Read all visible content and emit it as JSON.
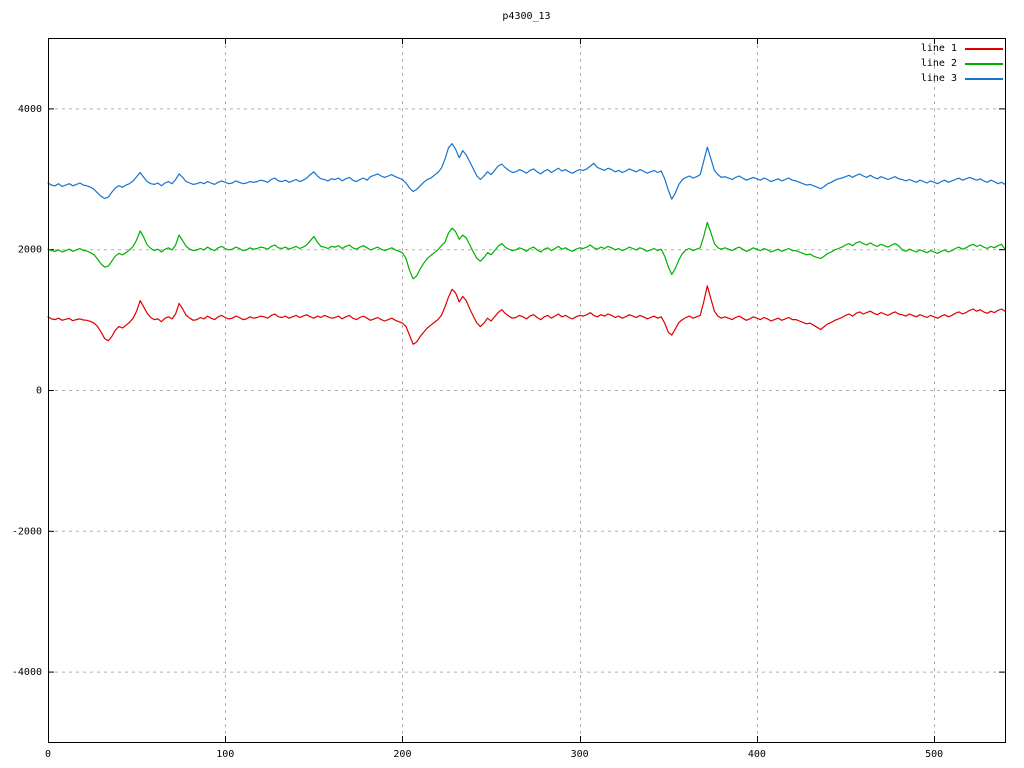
{
  "chart_data": {
    "type": "line",
    "title": "p4300_13",
    "xlabel": "",
    "ylabel": "",
    "xlim": [
      0,
      540
    ],
    "ylim": [
      -5000,
      5000
    ],
    "x_ticks": [
      0,
      100,
      200,
      300,
      400,
      500
    ],
    "y_ticks": [
      -4000,
      -2000,
      0,
      2000,
      4000
    ],
    "grid": "dashed",
    "legend_position": "top-right-inside",
    "colors": {
      "background": "#ffffff",
      "grid": "#b0b0b0",
      "axis": "#000000"
    },
    "x_start": 0,
    "x_step": 2,
    "series": [
      {
        "name": "line 1",
        "color": "#e00000",
        "values": [
          1040,
          1010,
          1000,
          1020,
          990,
          1005,
          1015,
          985,
          1000,
          1010,
          995,
          990,
          975,
          950,
          900,
          820,
          730,
          700,
          760,
          850,
          900,
          880,
          920,
          960,
          1020,
          1120,
          1270,
          1180,
          1090,
          1030,
          1000,
          1010,
          970,
          1020,
          1040,
          1010,
          1080,
          1230,
          1150,
          1060,
          1020,
          990,
          1000,
          1030,
          1010,
          1050,
          1020,
          1000,
          1040,
          1060,
          1030,
          1010,
          1020,
          1050,
          1030,
          1000,
          1010,
          1040,
          1020,
          1030,
          1050,
          1040,
          1020,
          1060,
          1080,
          1040,
          1030,
          1050,
          1020,
          1040,
          1060,
          1030,
          1050,
          1070,
          1040,
          1020,
          1050,
          1030,
          1060,
          1040,
          1020,
          1030,
          1050,
          1010,
          1040,
          1060,
          1020,
          1000,
          1030,
          1050,
          1020,
          990,
          1010,
          1030,
          1000,
          980,
          1000,
          1020,
          990,
          970,
          950,
          900,
          780,
          650,
          680,
          760,
          820,
          880,
          920,
          960,
          1000,
          1060,
          1180,
          1320,
          1430,
          1380,
          1250,
          1330,
          1270,
          1150,
          1050,
          950,
          900,
          950,
          1020,
          980,
          1040,
          1100,
          1140,
          1090,
          1050,
          1020,
          1030,
          1060,
          1040,
          1010,
          1050,
          1070,
          1030,
          1000,
          1040,
          1060,
          1020,
          1050,
          1080,
          1040,
          1060,
          1030,
          1010,
          1040,
          1060,
          1050,
          1070,
          1100,
          1060,
          1040,
          1070,
          1050,
          1080,
          1060,
          1030,
          1050,
          1020,
          1040,
          1070,
          1050,
          1030,
          1060,
          1040,
          1010,
          1030,
          1050,
          1020,
          1040,
          950,
          820,
          780,
          870,
          960,
          1000,
          1030,
          1050,
          1020,
          1040,
          1060,
          1250,
          1480,
          1300,
          1120,
          1050,
          1020,
          1040,
          1020,
          1000,
          1030,
          1050,
          1020,
          990,
          1010,
          1040,
          1020,
          1000,
          1030,
          1010,
          980,
          1000,
          1020,
          990,
          1010,
          1030,
          1000,
          1000,
          980,
          960,
          940,
          950,
          920,
          890,
          860,
          900,
          940,
          960,
          990,
          1010,
          1030,
          1060,
          1080,
          1050,
          1090,
          1110,
          1080,
          1100,
          1120,
          1090,
          1070,
          1100,
          1080,
          1060,
          1090,
          1110,
          1080,
          1070,
          1050,
          1080,
          1060,
          1040,
          1070,
          1050,
          1030,
          1060,
          1040,
          1020,
          1050,
          1070,
          1040,
          1060,
          1090,
          1110,
          1080,
          1100,
          1130,
          1150,
          1120,
          1140,
          1110,
          1090,
          1120,
          1100,
          1130,
          1150,
          1120
        ]
      },
      {
        "name": "line 2",
        "color": "#00b000",
        "values": [
          2000,
          1980,
          1970,
          1990,
          1960,
          1980,
          2000,
          1970,
          1990,
          2010,
          1980,
          1975,
          1950,
          1920,
          1860,
          1790,
          1745,
          1760,
          1830,
          1900,
          1940,
          1920,
          1950,
          1990,
          2040,
          2130,
          2260,
          2170,
          2060,
          2010,
          1980,
          2000,
          1960,
          2000,
          2020,
          1990,
          2060,
          2200,
          2120,
          2040,
          2000,
          1980,
          1990,
          2010,
          1990,
          2030,
          2000,
          1980,
          2020,
          2040,
          2010,
          1990,
          2000,
          2030,
          2010,
          1980,
          1990,
          2020,
          2000,
          2010,
          2030,
          2020,
          2000,
          2040,
          2060,
          2020,
          2010,
          2030,
          2000,
          2020,
          2040,
          2010,
          2030,
          2060,
          2120,
          2180,
          2100,
          2040,
          2030,
          2010,
          2040,
          2030,
          2050,
          2010,
          2040,
          2060,
          2020,
          2000,
          2030,
          2050,
          2020,
          1990,
          2010,
          2030,
          2000,
          1980,
          2000,
          2020,
          1990,
          1970,
          1950,
          1870,
          1700,
          1580,
          1620,
          1720,
          1800,
          1870,
          1910,
          1950,
          1990,
          2050,
          2100,
          2230,
          2300,
          2250,
          2140,
          2200,
          2160,
          2060,
          1960,
          1870,
          1830,
          1880,
          1950,
          1920,
          1980,
          2040,
          2080,
          2030,
          2000,
          1980,
          1990,
          2020,
          2000,
          1970,
          2010,
          2030,
          1990,
          1960,
          2000,
          2020,
          1980,
          2010,
          2040,
          2000,
          2020,
          1990,
          1970,
          2000,
          2020,
          2010,
          2030,
          2060,
          2020,
          2000,
          2030,
          2010,
          2040,
          2020,
          1990,
          2010,
          1980,
          2000,
          2030,
          2010,
          1990,
          2020,
          2000,
          1970,
          1990,
          2010,
          1980,
          2000,
          1900,
          1750,
          1640,
          1730,
          1850,
          1940,
          1990,
          2010,
          1980,
          2000,
          2020,
          2180,
          2380,
          2240,
          2080,
          2020,
          2000,
          2020,
          2000,
          1980,
          2010,
          2030,
          2000,
          1970,
          1990,
          2020,
          2000,
          1980,
          2010,
          1990,
          1960,
          1980,
          2000,
          1970,
          1990,
          2010,
          1980,
          1980,
          1960,
          1940,
          1920,
          1930,
          1900,
          1880,
          1870,
          1900,
          1940,
          1960,
          1990,
          2010,
          2030,
          2060,
          2080,
          2050,
          2090,
          2110,
          2080,
          2060,
          2090,
          2060,
          2040,
          2070,
          2050,
          2030,
          2060,
          2080,
          2050,
          1990,
          1970,
          2000,
          1980,
          1960,
          1990,
          1970,
          1950,
          1980,
          1960,
          1940,
          1970,
          1990,
          1960,
          1980,
          2010,
          2030,
          2000,
          2020,
          2050,
          2070,
          2040,
          2060,
          2030,
          2010,
          2040,
          2020,
          2050,
          2070,
          2000
        ]
      },
      {
        "name": "line 3",
        "color": "#1874cd",
        "values": [
          2940,
          2910,
          2900,
          2930,
          2890,
          2910,
          2930,
          2900,
          2920,
          2940,
          2910,
          2900,
          2880,
          2850,
          2800,
          2750,
          2720,
          2740,
          2810,
          2870,
          2900,
          2880,
          2910,
          2930,
          2970,
          3030,
          3090,
          3020,
          2960,
          2930,
          2920,
          2940,
          2900,
          2940,
          2960,
          2930,
          2990,
          3070,
          3020,
          2960,
          2940,
          2920,
          2930,
          2950,
          2930,
          2960,
          2940,
          2920,
          2950,
          2970,
          2950,
          2930,
          2940,
          2970,
          2950,
          2930,
          2940,
          2960,
          2950,
          2960,
          2980,
          2970,
          2950,
          2990,
          3010,
          2970,
          2960,
          2980,
          2950,
          2970,
          2990,
          2960,
          2980,
          3010,
          3060,
          3100,
          3040,
          3000,
          2990,
          2970,
          3000,
          2990,
          3010,
          2970,
          3000,
          3020,
          2980,
          2960,
          2990,
          3010,
          2980,
          3030,
          3050,
          3070,
          3040,
          3020,
          3040,
          3060,
          3030,
          3010,
          2990,
          2940,
          2870,
          2820,
          2850,
          2900,
          2950,
          2990,
          3010,
          3050,
          3090,
          3150,
          3280,
          3440,
          3500,
          3420,
          3300,
          3400,
          3340,
          3240,
          3140,
          3040,
          2990,
          3040,
          3100,
          3060,
          3120,
          3180,
          3210,
          3160,
          3120,
          3090,
          3100,
          3130,
          3110,
          3080,
          3120,
          3140,
          3100,
          3070,
          3110,
          3130,
          3090,
          3120,
          3150,
          3110,
          3130,
          3100,
          3080,
          3110,
          3130,
          3120,
          3140,
          3180,
          3220,
          3160,
          3140,
          3120,
          3150,
          3130,
          3100,
          3120,
          3090,
          3110,
          3140,
          3120,
          3100,
          3130,
          3110,
          3080,
          3100,
          3120,
          3090,
          3110,
          3000,
          2840,
          2710,
          2800,
          2920,
          2990,
          3020,
          3040,
          3010,
          3030,
          3060,
          3250,
          3450,
          3290,
          3120,
          3060,
          3020,
          3030,
          3010,
          2990,
          3020,
          3040,
          3010,
          2980,
          3000,
          3020,
          3000,
          2980,
          3010,
          2990,
          2960,
          2980,
          3000,
          2970,
          2990,
          3010,
          2980,
          2970,
          2950,
          2930,
          2910,
          2920,
          2900,
          2880,
          2860,
          2890,
          2930,
          2950,
          2980,
          3000,
          3010,
          3030,
          3050,
          3020,
          3050,
          3070,
          3040,
          3020,
          3050,
          3020,
          3000,
          3030,
          3010,
          2990,
          3010,
          3030,
          3000,
          2990,
          2970,
          2990,
          2970,
          2950,
          2980,
          2960,
          2940,
          2970,
          2950,
          2930,
          2960,
          2980,
          2950,
          2970,
          2990,
          3010,
          2980,
          3000,
          3020,
          3000,
          2980,
          3000,
          2970,
          2950,
          2980,
          2960,
          2930,
          2950,
          2920
        ]
      }
    ]
  }
}
